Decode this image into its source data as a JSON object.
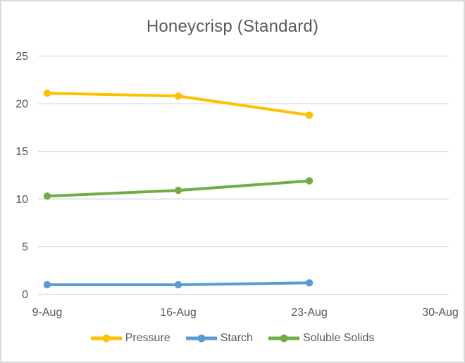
{
  "chart_data": {
    "type": "line",
    "title": "Honeycrisp (Standard)",
    "categories": [
      "9-Aug",
      "16-Aug",
      "23-Aug",
      "30-Aug"
    ],
    "series": [
      {
        "name": "Pressure",
        "color": "#FFC000",
        "values": [
          21.1,
          20.8,
          18.8
        ]
      },
      {
        "name": "Starch",
        "color": "#5B9BD5",
        "values": [
          1.0,
          1.0,
          1.2
        ]
      },
      {
        "name": "Soluble Solids",
        "color": "#70AD47",
        "values": [
          10.3,
          10.9,
          11.9
        ]
      }
    ],
    "xlabel": "",
    "ylabel": "",
    "ylim": [
      0,
      25
    ],
    "yticks": [
      0,
      5,
      10,
      15,
      20,
      25
    ],
    "grid": "horizontal",
    "markers": true,
    "legend_position": "bottom",
    "colors": {
      "title_text": "#595959",
      "axis_text": "#595959",
      "gridline": "#D9D9D9",
      "border": "#D9D9D9",
      "background": "#FFFFFF"
    }
  }
}
